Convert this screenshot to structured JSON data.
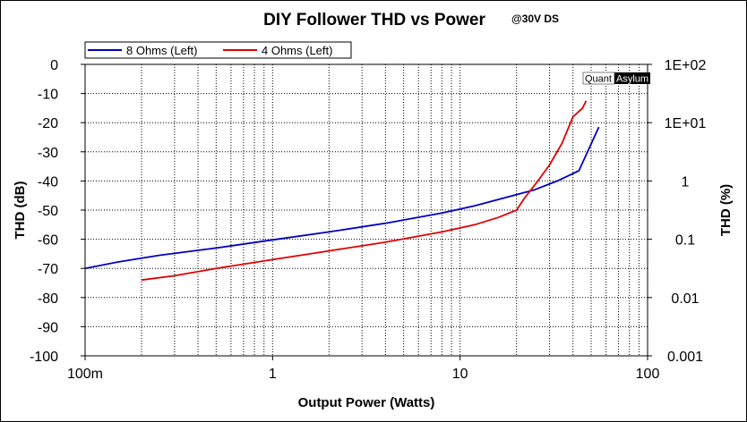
{
  "chart_data": {
    "type": "line",
    "title": "DIY Follower THD vs Power",
    "subtitle": "@30V DS",
    "xlabel": "Output Power (Watts)",
    "ylabel_left": "THD (dB)",
    "ylabel_right": "THD (%)",
    "x_scale": "log",
    "xlim": [
      0.1,
      100
    ],
    "x_ticks": [
      {
        "value": 0.1,
        "label": "100m"
      },
      {
        "value": 1,
        "label": "1"
      },
      {
        "value": 10,
        "label": "10"
      },
      {
        "value": 100,
        "label": "100"
      }
    ],
    "ylim_left": [
      -100,
      0
    ],
    "y_ticks_left": [
      0,
      -10,
      -20,
      -30,
      -40,
      -50,
      -60,
      -70,
      -80,
      -90,
      -100
    ],
    "ylim_right": [
      0.001,
      100
    ],
    "y_ticks_right": [
      "1E+02",
      "1E+01",
      "1",
      "0.1",
      "0.01",
      "0.001"
    ],
    "grid": true,
    "legend_position": "top-left",
    "watermark": {
      "part1": "Quant",
      "part2": "Asylum"
    },
    "series": [
      {
        "name": "8 Ohms (Left)",
        "color": "#0000c0",
        "x": [
          0.1,
          0.15,
          0.25,
          0.5,
          1,
          2,
          4,
          8,
          12,
          18,
          25,
          33,
          43,
          55
        ],
        "y": [
          -70,
          -67.8,
          -65.5,
          -63,
          -60.2,
          -57.5,
          -54.5,
          -51,
          -48.5,
          -45.5,
          -43,
          -40,
          -36.5,
          -21.5
        ]
      },
      {
        "name": "4 Ohms (Left)",
        "color": "#e00000",
        "x": [
          0.2,
          0.3,
          0.5,
          1,
          2,
          4,
          8,
          12,
          16,
          20,
          22,
          26,
          30,
          35,
          40,
          45,
          47
        ],
        "y": [
          -74,
          -72.5,
          -70,
          -67,
          -64,
          -61,
          -57.5,
          -55,
          -52.5,
          -50,
          -46,
          -40,
          -34.5,
          -27,
          -18,
          -15,
          -12.5
        ]
      }
    ]
  }
}
